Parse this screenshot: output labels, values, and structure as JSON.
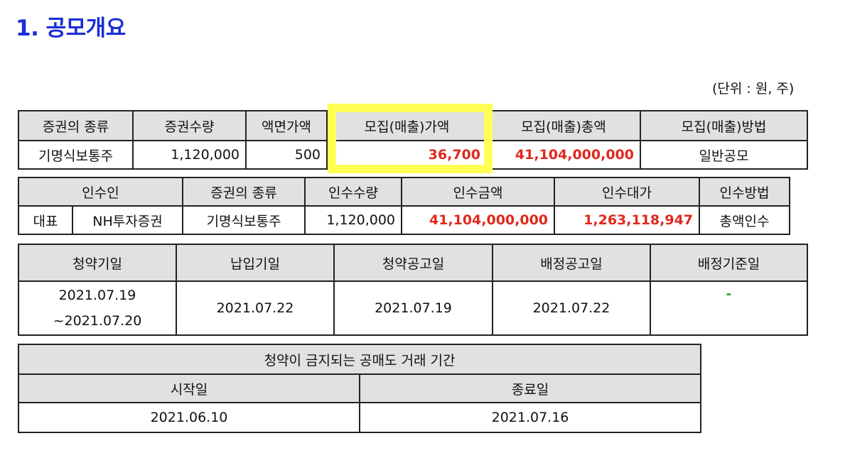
{
  "title": "1. 공모개요",
  "unit": "(단위 : 원, 주)",
  "table1": {
    "headers": [
      "증권의 종류",
      "증권수량",
      "액면가액",
      "모집(매출)가액",
      "모집(매출)총액",
      "모집(매출)방법"
    ],
    "row": [
      "기명식보통주",
      "1,120,000",
      "500",
      "36,700",
      "41,104,000,000",
      "일반공모"
    ]
  },
  "table2": {
    "headers": [
      "인수인",
      "증권의 종류",
      "인수수량",
      "인수금액",
      "인수대가",
      "인수방법"
    ],
    "row": [
      "대표",
      "NH투자증권",
      "기명식보통주",
      "1,120,000",
      "41,104,000,000",
      "1,263,118,947",
      "총액인수"
    ]
  },
  "table3": {
    "headers": [
      "청약기일",
      "납입기일",
      "청약공고일",
      "배정공고일",
      "배정기준일"
    ],
    "subscription_start": "2021.07.19",
    "subscription_end": "~2021.07.20",
    "payment_date": "2021.07.22",
    "subscription_notice_date": "2021.07.19",
    "allocation_notice_date": "2021.07.22",
    "allocation_base_date": "-"
  },
  "table4": {
    "title": "청약이 금지되는 공매도 거래 기간",
    "headers": [
      "시작일",
      "종료일"
    ],
    "row": [
      "2021.06.10",
      "2021.07.16"
    ]
  },
  "colors": {
    "title": "#1a2fd8",
    "header_bg": "#e1e1e1",
    "highlight_value": "#e0281e",
    "dash": "#28a745",
    "highlight_box": "#ffff55"
  }
}
